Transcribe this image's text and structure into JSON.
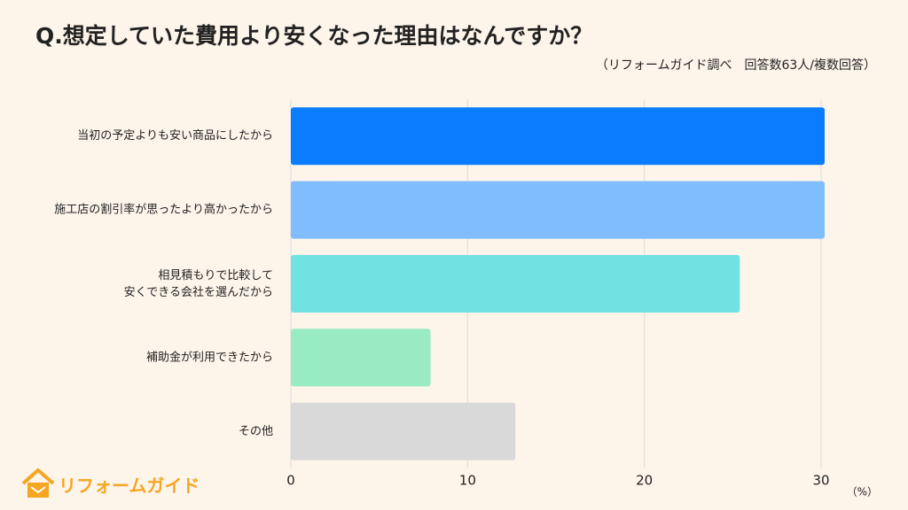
{
  "chart_data": {
    "type": "barh",
    "title": "Q.想定していた費用より安くなった理由はなんですか？",
    "subtitle": "（リフォームガイド調べ　回答数63人/複数回答）",
    "categories": [
      "当初の予定よりも安い商品にしたから",
      "施工店の割引率が思ったより高かったから",
      "相見積もりで比較して\n安くできる会社を選んだから",
      "補助金が利用できたから",
      "その他"
    ],
    "values": [
      30.2,
      30.2,
      25.4,
      7.9,
      12.7
    ],
    "colors": [
      "#0a7cff",
      "#80bdff",
      "#72e1e1",
      "#98ebc3",
      "#d9d9d9"
    ],
    "xlim": [
      0,
      30
    ],
    "xticks": [
      0,
      10,
      20,
      30
    ],
    "x_unit_label": "（%）",
    "grid": true,
    "logo": "リフォームガイド"
  }
}
